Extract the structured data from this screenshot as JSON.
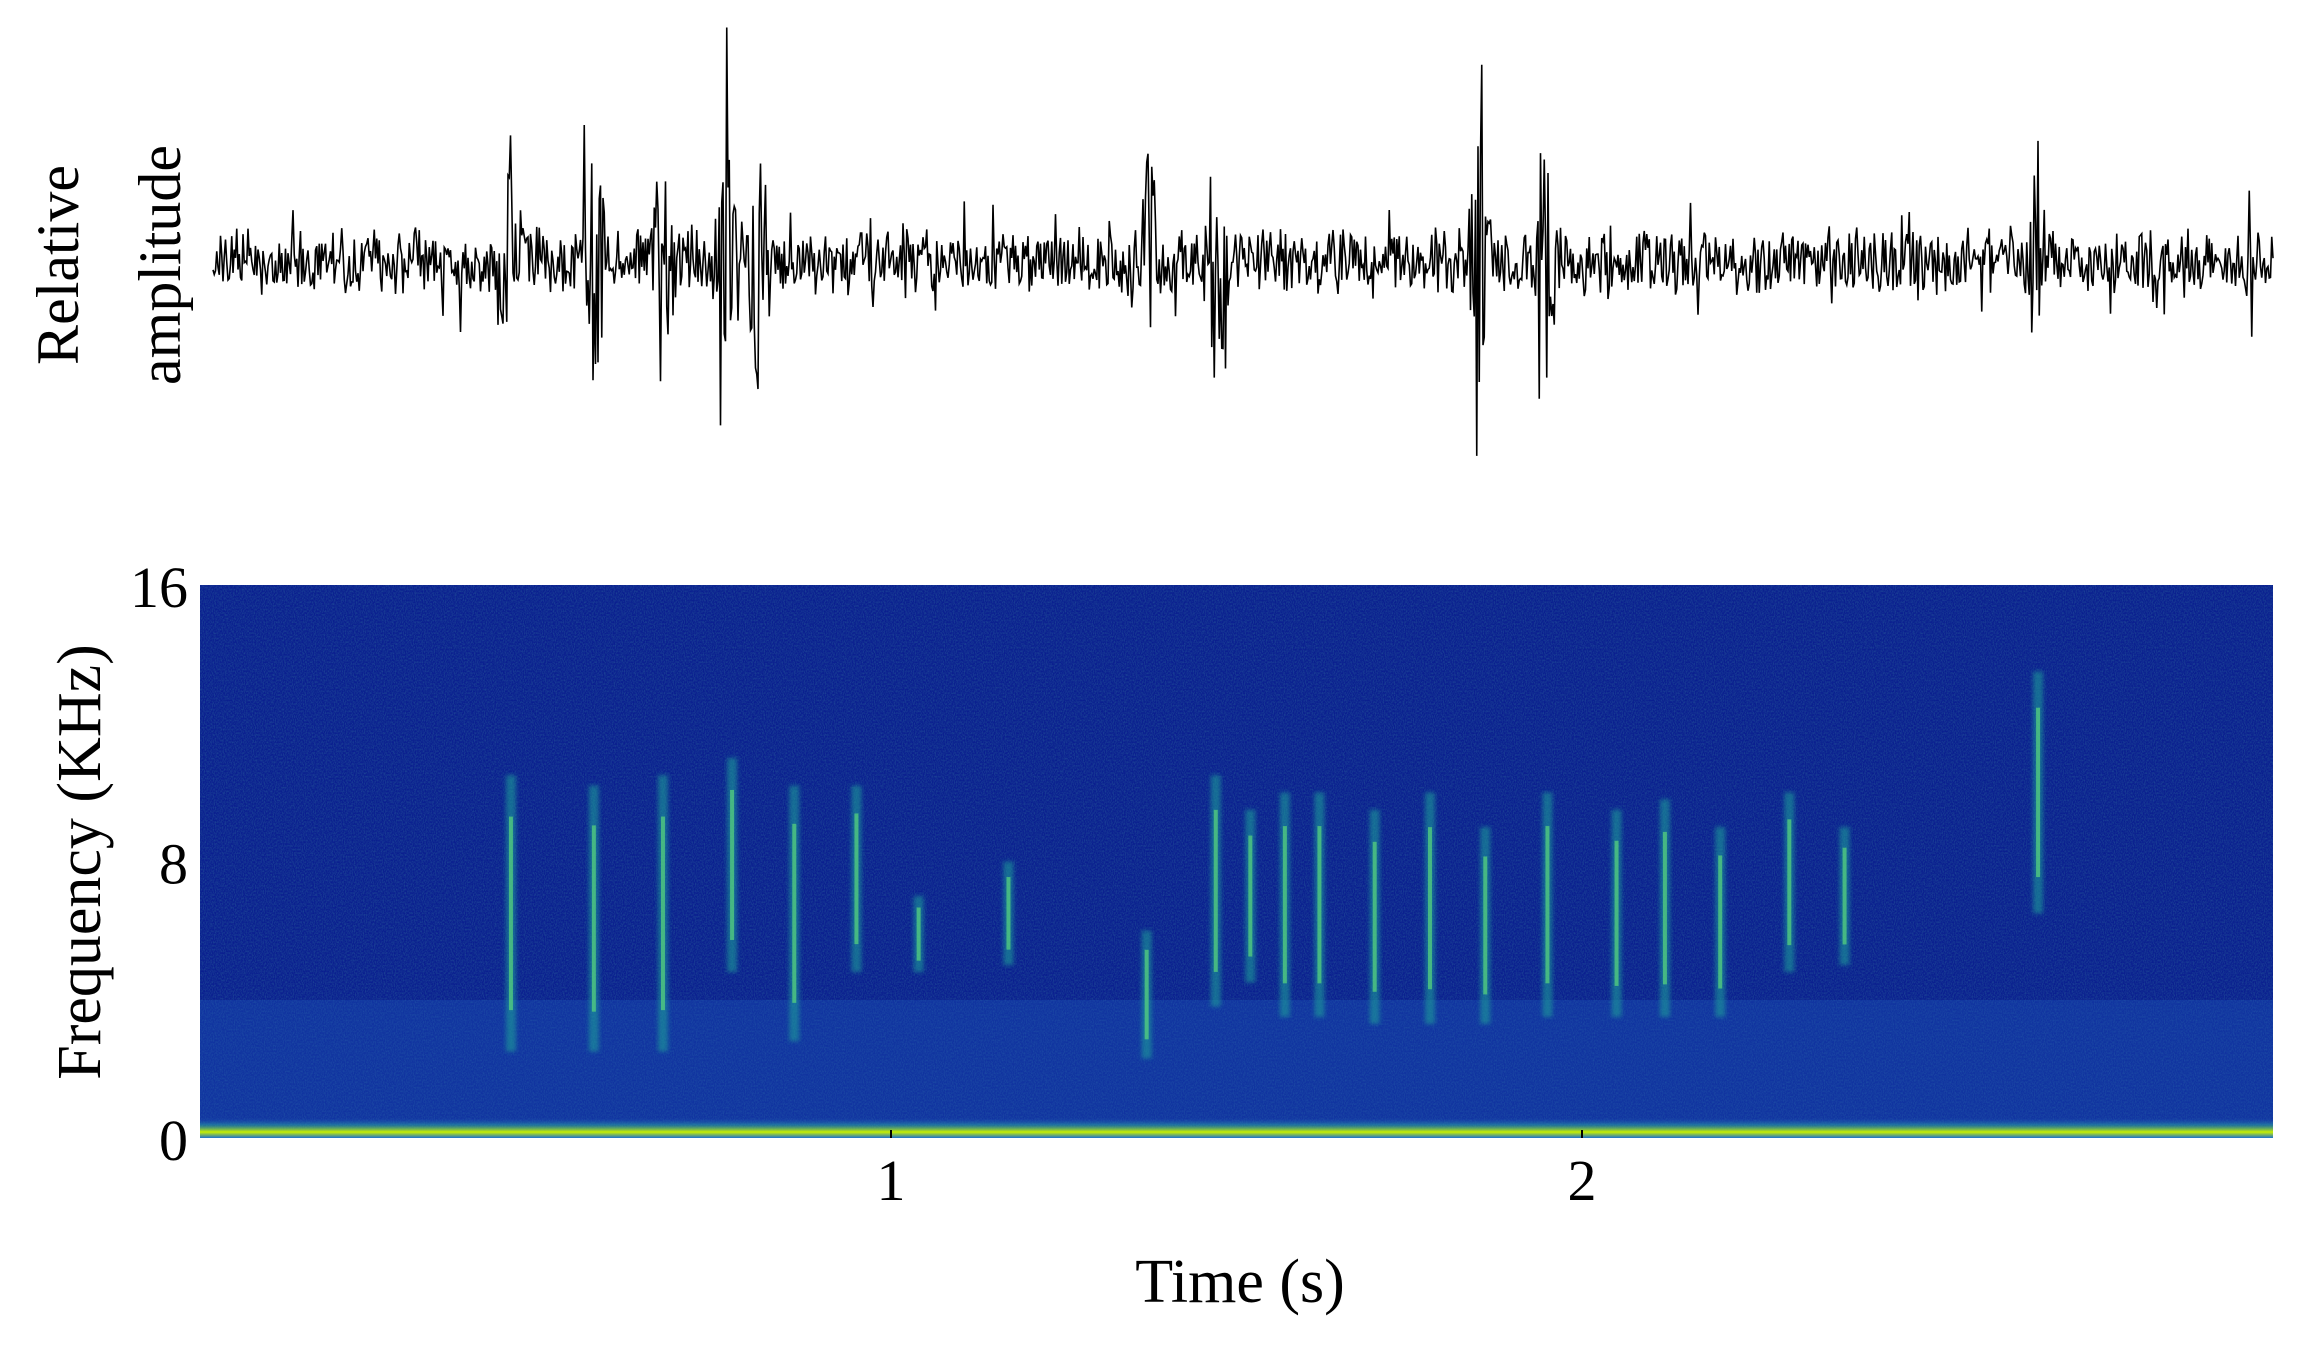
{
  "chart_data": [
    {
      "type": "line",
      "panel": "waveform",
      "ylabel_lines": [
        "Relative",
        "amplitude"
      ],
      "xlim": [
        0,
        3
      ],
      "grid": false,
      "transient_spikes_s": [
        0.45,
        0.57,
        0.67,
        0.76,
        0.81,
        1.37,
        1.47,
        1.85,
        1.95,
        2.66
      ],
      "color": "#000000"
    },
    {
      "type": "heatmap",
      "panel": "spectrogram",
      "xlabel": "Time (s)",
      "ylabel": "Frequency (KHz)",
      "xlim": [
        0,
        3
      ],
      "ylim": [
        0,
        16
      ],
      "x_ticks": [
        1,
        2
      ],
      "y_ticks": [
        0,
        8,
        16
      ],
      "grid": false,
      "background_color": "#0a1f8f",
      "low_band_color": "#c8f000",
      "calls": [
        {
          "t": 0.45,
          "f_low": 2.5,
          "f_high": 10.5
        },
        {
          "t": 0.57,
          "f_low": 2.5,
          "f_high": 10.2
        },
        {
          "t": 0.67,
          "f_low": 2.5,
          "f_high": 10.5
        },
        {
          "t": 0.77,
          "f_low": 4.8,
          "f_high": 11.0
        },
        {
          "t": 0.86,
          "f_low": 2.8,
          "f_high": 10.2
        },
        {
          "t": 0.95,
          "f_low": 4.8,
          "f_high": 10.2
        },
        {
          "t": 1.04,
          "f_low": 4.8,
          "f_high": 7.0
        },
        {
          "t": 1.17,
          "f_low": 5.0,
          "f_high": 8.0
        },
        {
          "t": 1.37,
          "f_low": 2.3,
          "f_high": 6.0
        },
        {
          "t": 1.47,
          "f_low": 3.8,
          "f_high": 10.5
        },
        {
          "t": 1.52,
          "f_low": 4.5,
          "f_high": 9.5
        },
        {
          "t": 1.57,
          "f_low": 3.5,
          "f_high": 10.0
        },
        {
          "t": 1.62,
          "f_low": 3.5,
          "f_high": 10.0
        },
        {
          "t": 1.7,
          "f_low": 3.3,
          "f_high": 9.5
        },
        {
          "t": 1.78,
          "f_low": 3.3,
          "f_high": 10.0
        },
        {
          "t": 1.86,
          "f_low": 3.3,
          "f_high": 9.0
        },
        {
          "t": 1.95,
          "f_low": 3.5,
          "f_high": 10.0
        },
        {
          "t": 2.05,
          "f_low": 3.5,
          "f_high": 9.5
        },
        {
          "t": 2.12,
          "f_low": 3.5,
          "f_high": 9.8
        },
        {
          "t": 2.2,
          "f_low": 3.5,
          "f_high": 9.0
        },
        {
          "t": 2.3,
          "f_low": 4.8,
          "f_high": 10.0
        },
        {
          "t": 2.38,
          "f_low": 5.0,
          "f_high": 9.0
        },
        {
          "t": 2.66,
          "f_low": 6.5,
          "f_high": 13.5
        }
      ]
    }
  ]
}
